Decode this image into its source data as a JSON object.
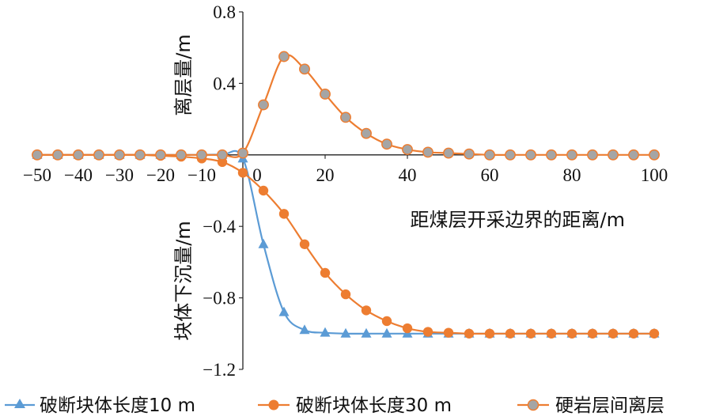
{
  "chart_data": {
    "type": "line",
    "xlabel": "距煤层开采边界的距离/m",
    "ylabel_top": "离层量/m",
    "ylabel_bottom": "块体下沉量/m",
    "xlim": [
      -50,
      100
    ],
    "ylim": [
      -1.2,
      0.8
    ],
    "x_ticks": [
      -50,
      -40,
      -30,
      -20,
      -10,
      0,
      20,
      40,
      60,
      80,
      100
    ],
    "x_tick_labels": [
      "−50",
      "−40",
      "−30",
      "−20",
      "−10",
      "0",
      "20",
      "40",
      "60",
      "80",
      "100"
    ],
    "y_ticks": [
      0.8,
      0.4,
      -0.4,
      -0.8,
      -1.2
    ],
    "y_tick_labels": [
      "0.8",
      "0.4",
      "−0.4",
      "−0.8",
      "−1.2"
    ],
    "grid": false,
    "legend_position": "bottom",
    "colors": {
      "series1": "#5b9bd5",
      "series2": "#ed7d31",
      "series3_fill": "#a5a5a5",
      "series3_line": "#ed7d31",
      "axis": "#222222"
    },
    "series": [
      {
        "name": "破断块体长度10 m",
        "marker": "triangle",
        "x": [
          -50,
          -45,
          -40,
          -35,
          -30,
          -25,
          -20,
          -15,
          -10,
          -5,
          0,
          5,
          10,
          15,
          20,
          25,
          30,
          35,
          40,
          45,
          50,
          55,
          60,
          65,
          70,
          75,
          80,
          85,
          90,
          95,
          100
        ],
        "y": [
          0,
          0,
          0,
          0,
          0,
          0,
          0,
          0,
          0,
          0,
          -0.02,
          -0.5,
          -0.88,
          -0.98,
          -0.995,
          -1.0,
          -1.0,
          -1.0,
          -1.0,
          -1.0,
          -1.0,
          -1.0,
          -1.0,
          -1.0,
          -1.0,
          -1.0,
          -1.0,
          -1.0,
          -1.0,
          -1.0,
          -1.0
        ]
      },
      {
        "name": "破断块体长度30 m",
        "marker": "circle",
        "x": [
          -50,
          -45,
          -40,
          -35,
          -30,
          -25,
          -20,
          -15,
          -10,
          -5,
          0,
          5,
          10,
          15,
          20,
          25,
          30,
          35,
          40,
          45,
          50,
          55,
          60,
          65,
          70,
          75,
          80,
          85,
          90,
          95,
          100
        ],
        "y": [
          0,
          0,
          0,
          0,
          0,
          0,
          -0.005,
          -0.01,
          -0.02,
          -0.04,
          -0.1,
          -0.2,
          -0.33,
          -0.5,
          -0.66,
          -0.78,
          -0.87,
          -0.93,
          -0.97,
          -0.99,
          -0.995,
          -1.0,
          -1.0,
          -1.0,
          -1.0,
          -1.0,
          -1.0,
          -1.0,
          -1.0,
          -1.0,
          -1.0
        ]
      },
      {
        "name": "硬岩层间离层",
        "marker": "circle",
        "x": [
          -50,
          -45,
          -40,
          -35,
          -30,
          -25,
          -20,
          -15,
          -10,
          -5,
          0,
          5,
          10,
          15,
          20,
          25,
          30,
          35,
          40,
          45,
          50,
          55,
          60,
          65,
          70,
          75,
          80,
          85,
          90,
          95,
          100
        ],
        "y": [
          0,
          0,
          0,
          0,
          0,
          0,
          0,
          0,
          0,
          0,
          0.01,
          0.28,
          0.55,
          0.48,
          0.34,
          0.21,
          0.12,
          0.06,
          0.03,
          0.015,
          0.01,
          0.005,
          0,
          0,
          0,
          0,
          0,
          0,
          0,
          0,
          0
        ]
      }
    ]
  }
}
